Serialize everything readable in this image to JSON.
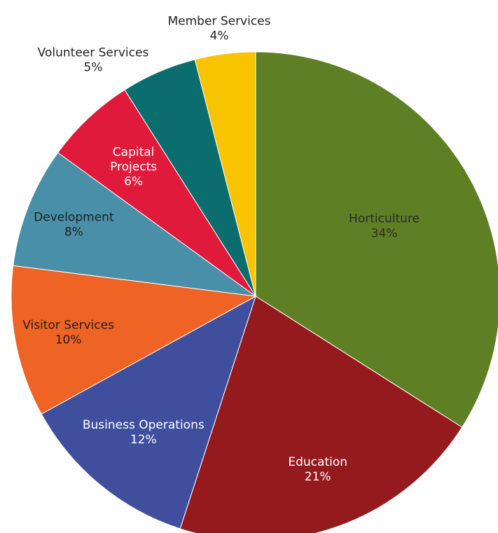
{
  "chart_data": {
    "type": "pie",
    "title": "",
    "start_angle_deg": 0,
    "direction": "clockwise",
    "slices": [
      {
        "label": "Horticulture",
        "value": 34,
        "value_label": "34%",
        "color": "#5E7F24",
        "label_color": "#2b2b2b",
        "label_inside": true
      },
      {
        "label": "Education",
        "value": 21,
        "value_label": "21%",
        "color": "#951A1D",
        "label_color": "#ffffff",
        "label_inside": true
      },
      {
        "label": "Business Operations",
        "value": 12,
        "value_label": "12%",
        "color": "#3F4F9D",
        "label_color": "#ffffff",
        "label_inside": true
      },
      {
        "label": "Visitor Services",
        "value": 10,
        "value_label": "10%",
        "color": "#EF6424",
        "label_color": "#1f1f1f",
        "label_inside": true
      },
      {
        "label": "Development",
        "value": 8,
        "value_label": "8%",
        "color": "#4A8FA8",
        "label_color": "#1f1f1f",
        "label_inside": true
      },
      {
        "label": "Capital Projects",
        "value": 6,
        "value_label": "6%",
        "color": "#E01A3B",
        "label_color": "#ffffff",
        "label_inside": true
      },
      {
        "label": "Volunteer Services",
        "value": 5,
        "value_label": "5%",
        "color": "#0B6D6E",
        "label_color": "#1f1f1f",
        "label_inside": false
      },
      {
        "label": "Member Services",
        "value": 4,
        "value_label": "4%",
        "color": "#F8C300",
        "label_color": "#1f1f1f",
        "label_inside": false
      }
    ]
  }
}
